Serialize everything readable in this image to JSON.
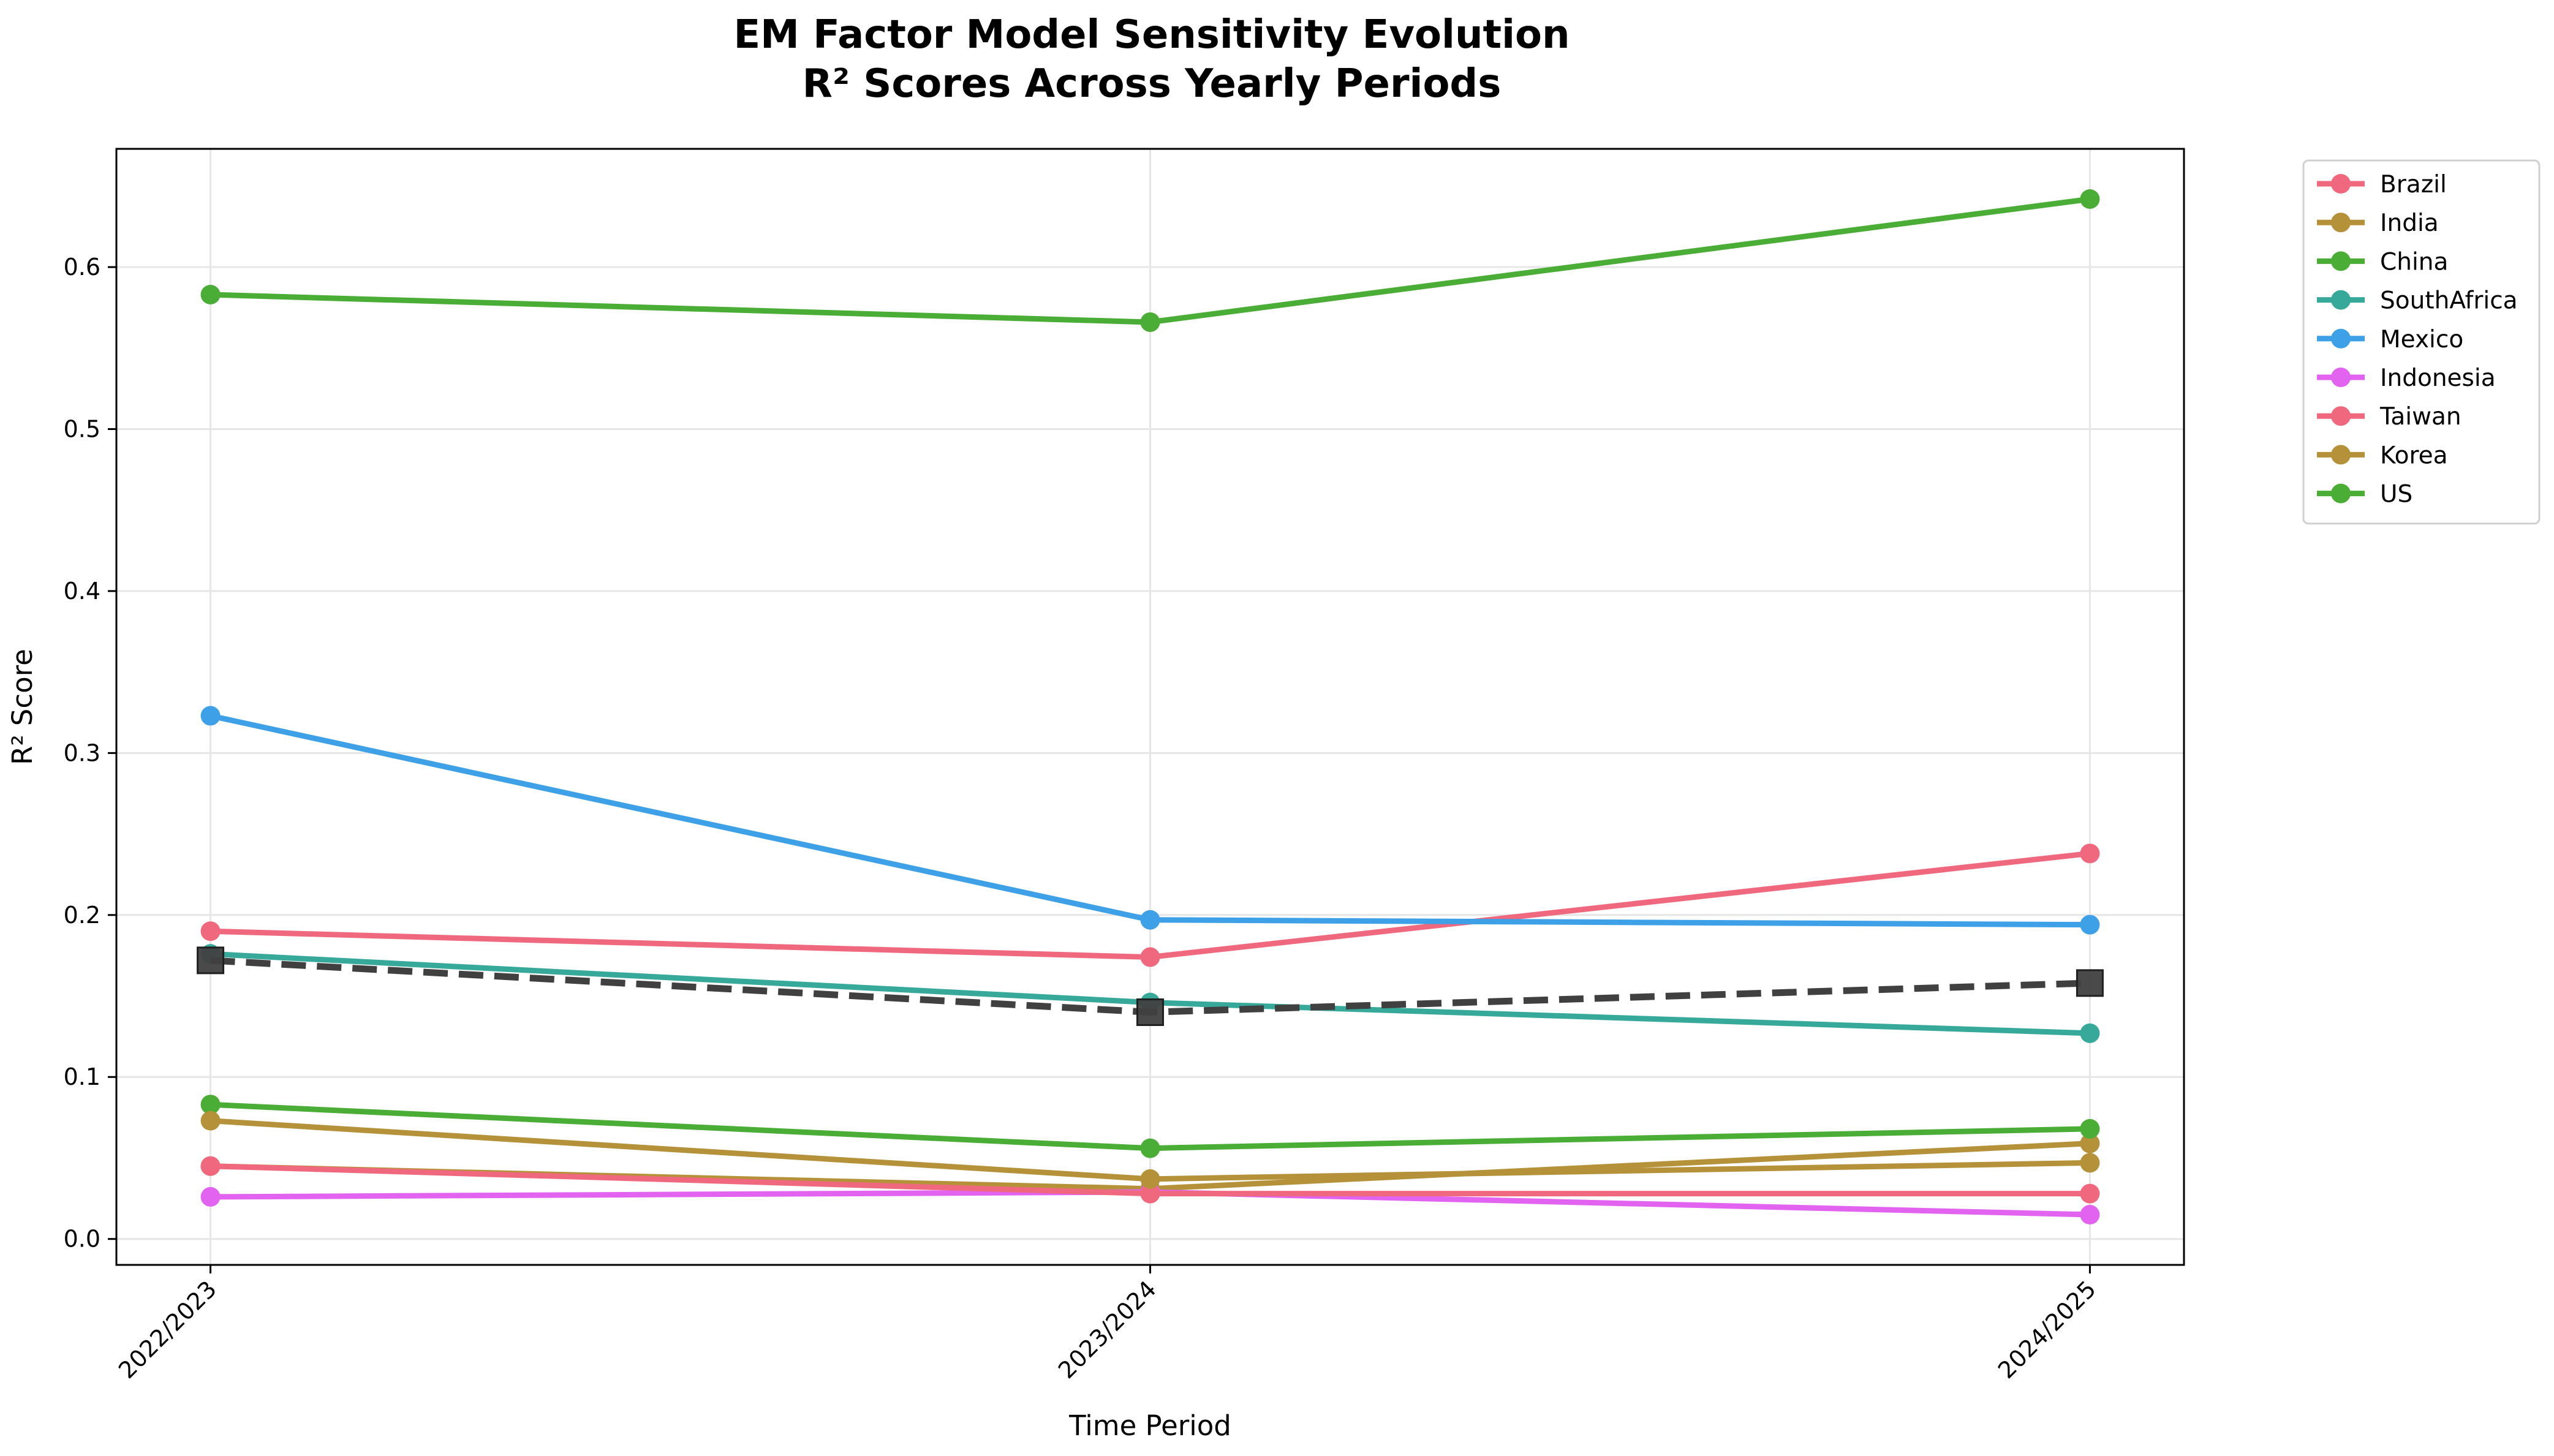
{
  "chart_data": {
    "type": "line",
    "title": "EM Factor Model Sensitivity Evolution",
    "subtitle": "R² Scores Across Yearly Periods",
    "xlabel": "Time Period",
    "ylabel": "R² Score",
    "categories": [
      "2022/2023",
      "2023/2024",
      "2024/2025"
    ],
    "ylim": [
      -0.016,
      0.673
    ],
    "yticks": [
      0.0,
      0.1,
      0.2,
      0.3,
      0.4,
      0.5,
      0.6
    ],
    "ytick_labels": [
      "0.0",
      "0.1",
      "0.2",
      "0.3",
      "0.4",
      "0.5",
      "0.6"
    ],
    "grid": true,
    "legend_position": "outside-right",
    "series": [
      {
        "name": "Brazil",
        "color": "#f0687e",
        "values": [
          0.19,
          0.174,
          0.238
        ]
      },
      {
        "name": "India",
        "color": "#b5923a",
        "values": [
          0.045,
          0.031,
          0.059
        ]
      },
      {
        "name": "China",
        "color": "#4aad35",
        "values": [
          0.083,
          0.056,
          0.068
        ]
      },
      {
        "name": "SouthAfrica",
        "color": "#36a99a",
        "values": [
          0.176,
          0.146,
          0.127
        ]
      },
      {
        "name": "Mexico",
        "color": "#3ea0e6",
        "values": [
          0.323,
          0.197,
          0.194
        ]
      },
      {
        "name": "Indonesia",
        "color": "#e163f0",
        "values": [
          0.026,
          0.029,
          0.015
        ]
      },
      {
        "name": "Taiwan",
        "color": "#f0687e",
        "values": [
          0.045,
          0.028,
          0.028
        ]
      },
      {
        "name": "Korea",
        "color": "#b5923a",
        "values": [
          0.073,
          0.037,
          0.047
        ]
      },
      {
        "name": "US",
        "color": "#4aad35",
        "values": [
          0.583,
          0.566,
          0.642
        ]
      }
    ],
    "average_line": {
      "color": "#404040",
      "values": [
        0.172,
        0.14,
        0.158
      ]
    }
  }
}
